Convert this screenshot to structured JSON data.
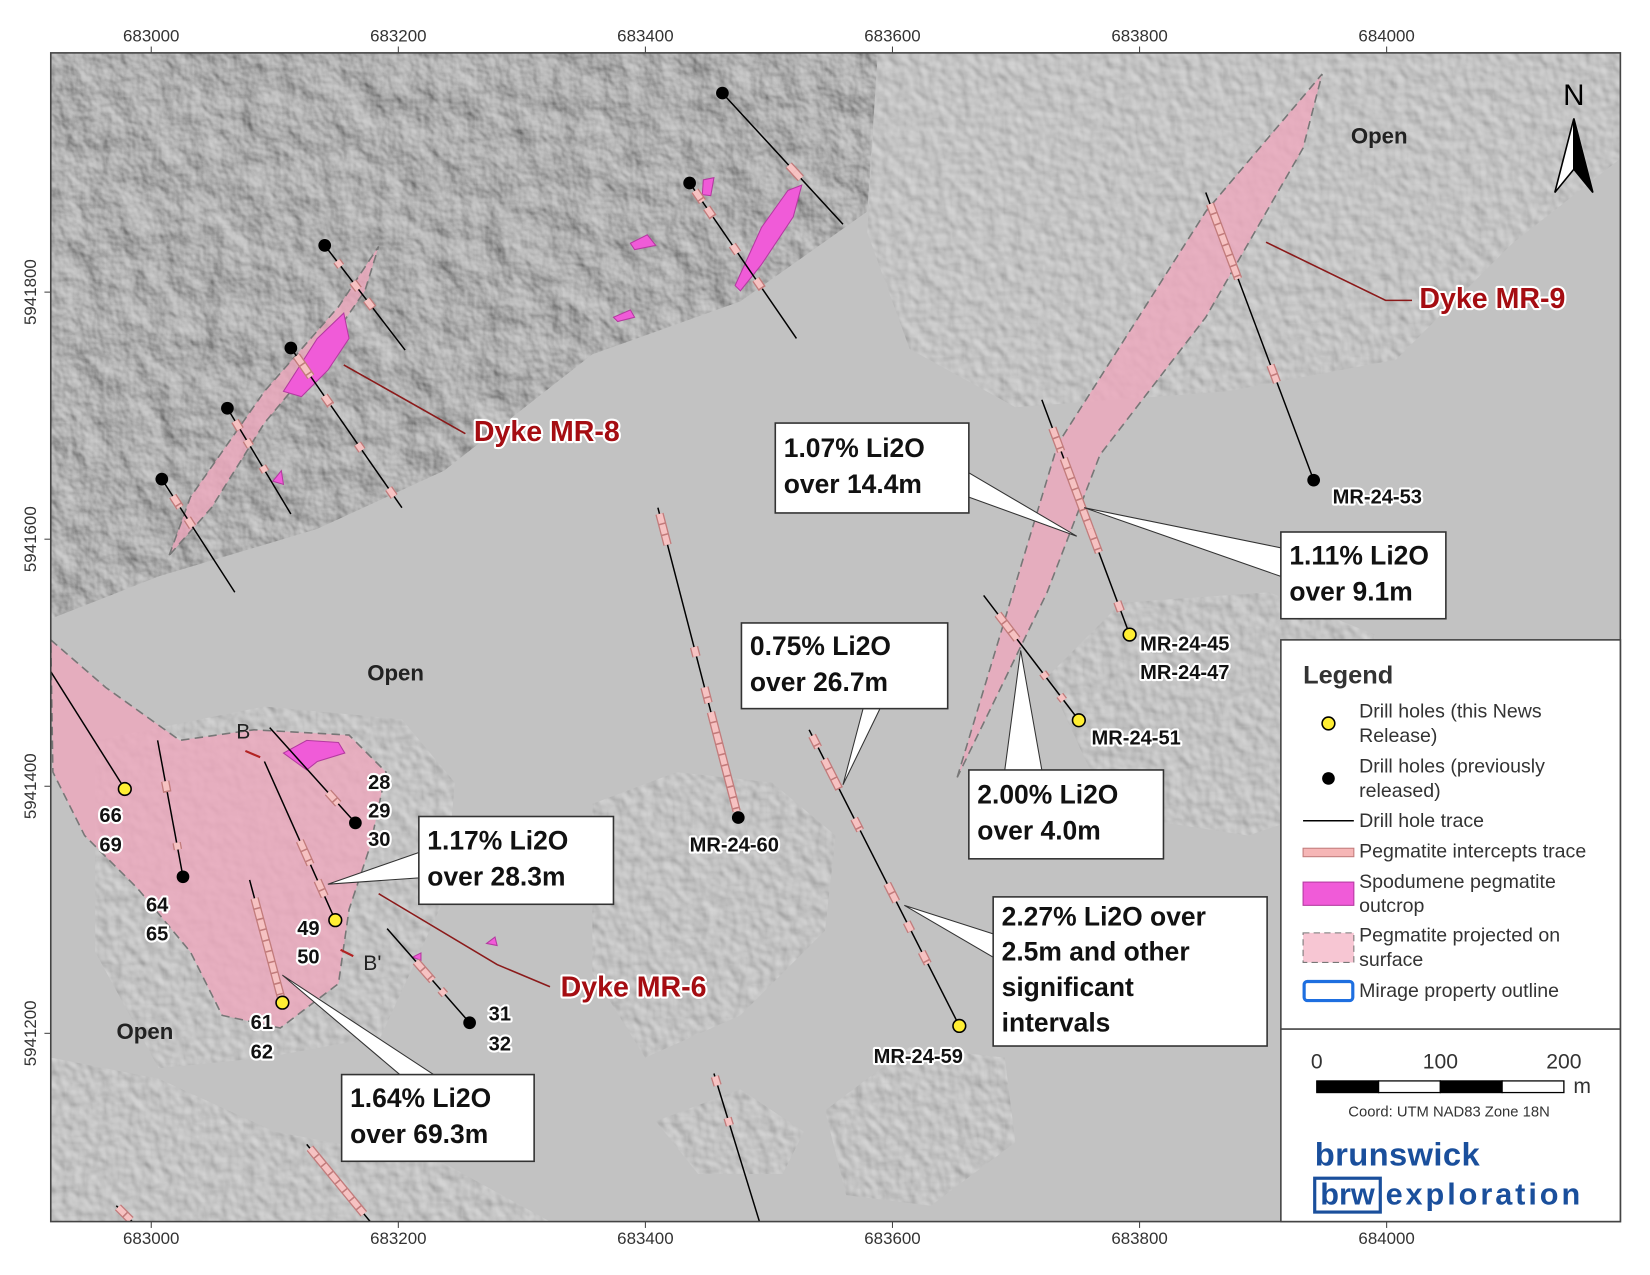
{
  "axes": {
    "x_ticks": [
      683000,
      683200,
      683400,
      683600,
      683800,
      684000
    ],
    "y_ticks": [
      5941200,
      5941400,
      5941600,
      5941800
    ]
  },
  "north": "N",
  "area_labels": [
    "Open",
    "Open",
    "Open"
  ],
  "dykes": [
    "Dyke MR-8",
    "Dyke MR-9",
    "Dyke MR-6"
  ],
  "section_labels": [
    "B",
    "B'"
  ],
  "hole_labels": [
    "MR-24-53",
    "MR-24-45",
    "MR-24-47",
    "MR-24-51",
    "MR-24-60",
    "MR-24-59",
    "28",
    "29",
    "30",
    "66",
    "69",
    "64",
    "65",
    "49",
    "50",
    "61",
    "62",
    "31",
    "32"
  ],
  "callouts": [
    [
      "1.07% Li2O",
      "over 14.4m"
    ],
    [
      "1.11% Li2O",
      "over 9.1m"
    ],
    [
      "0.75% Li2O",
      "over 26.7m"
    ],
    [
      "2.00% Li2O",
      "over 4.0m"
    ],
    [
      "1.17% Li2O",
      "over 28.3m"
    ],
    [
      "2.27% Li2O over",
      "2.5m and other",
      "significant",
      "intervals"
    ],
    [
      "1.64% Li2O",
      "over 69.3m"
    ]
  ],
  "legend": {
    "title": "Legend",
    "items": [
      [
        "Drill holes (this News",
        "Release)"
      ],
      [
        "Drill holes (previously",
        "released)"
      ],
      [
        "Drill hole trace"
      ],
      [
        "Pegmatite intercepts trace"
      ],
      [
        "Spodumene pegmatite",
        "outcrop"
      ],
      [
        "Pegmatite projected on",
        "surface"
      ],
      [
        "Mirage property outline"
      ]
    ]
  },
  "scale_bar": {
    "ticks": [
      0,
      100,
      200
    ],
    "unit": "m"
  },
  "coordinate_system": "Coord: UTM NAD83 Zone 18N",
  "logo": {
    "top": "brunswick",
    "badge": "brw",
    "bottom": "exploration"
  }
}
